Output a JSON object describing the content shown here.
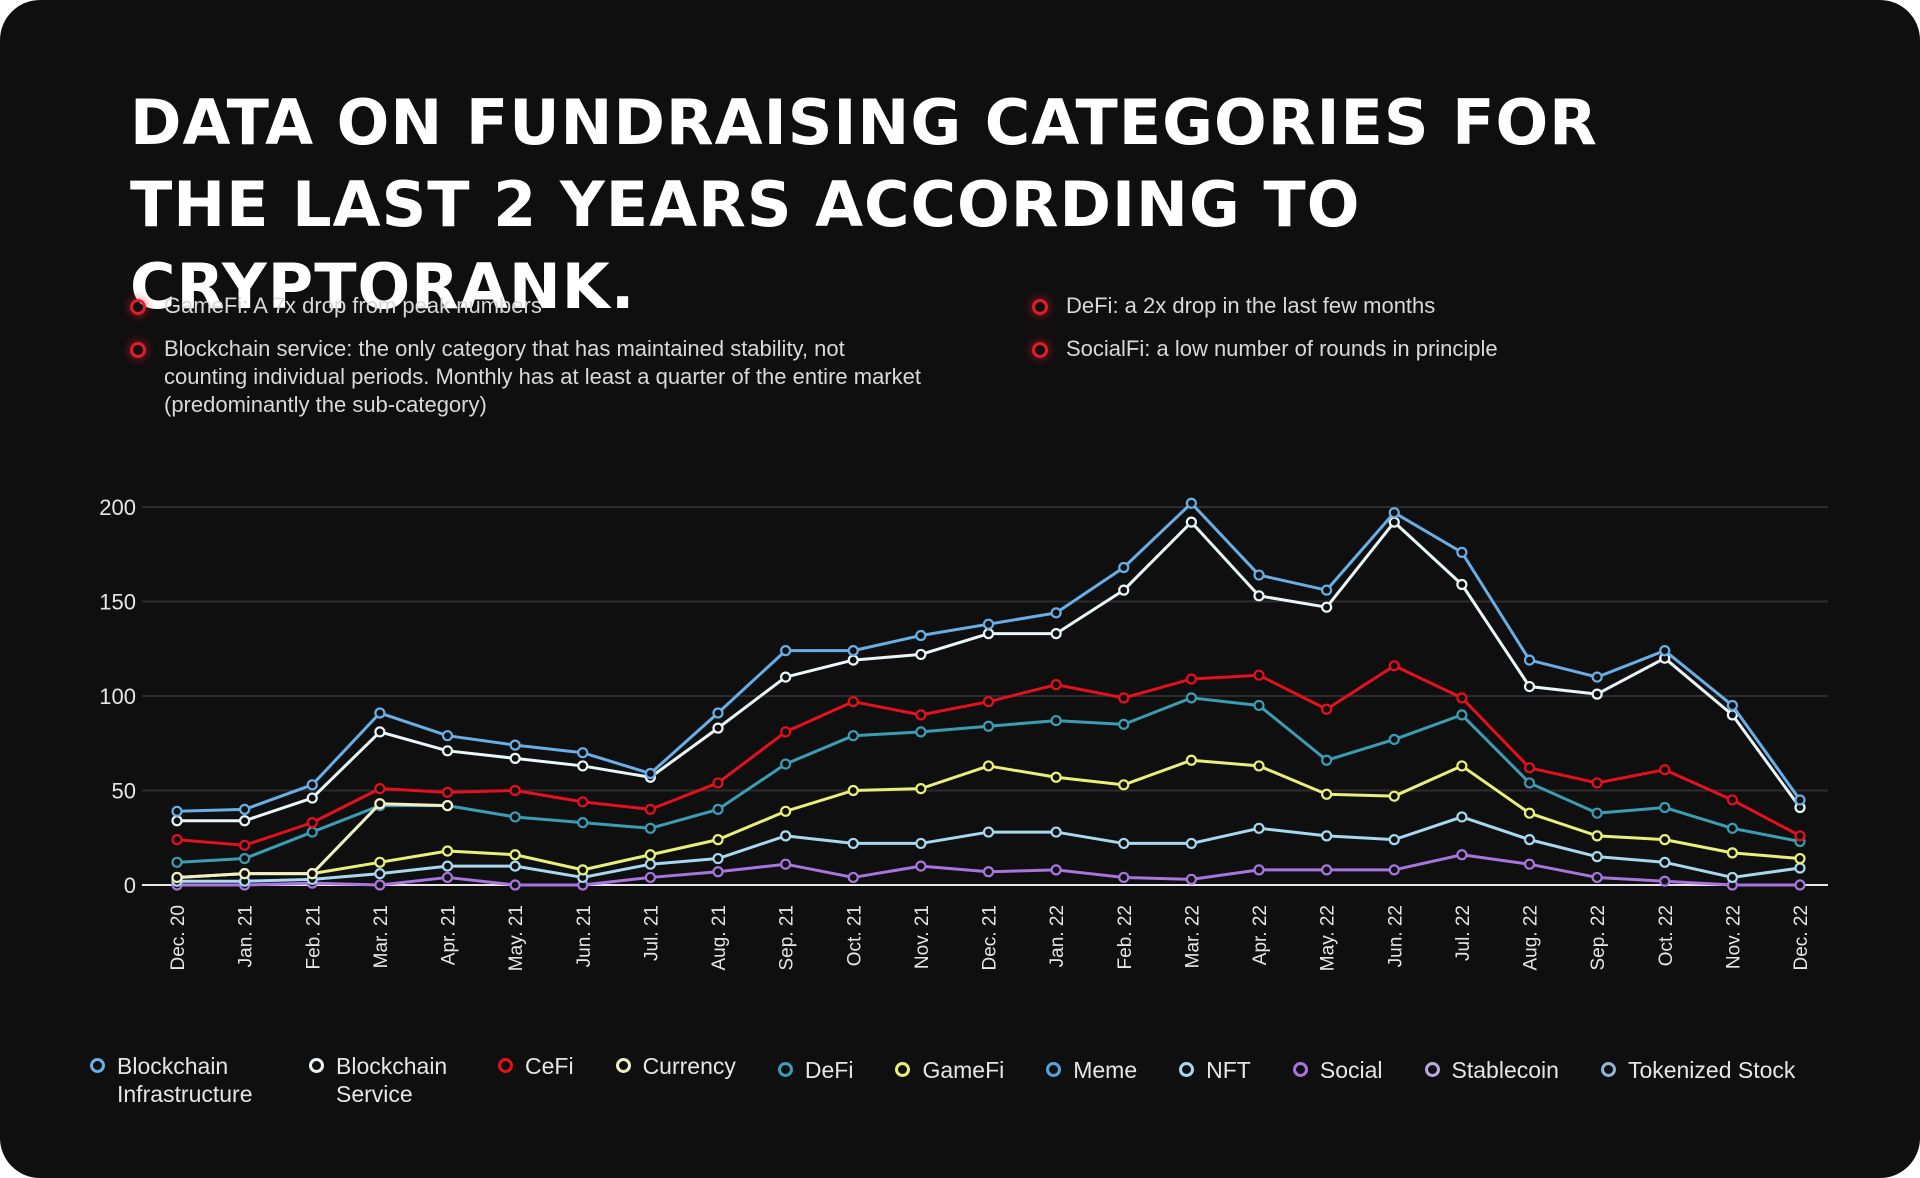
{
  "title": "DATA ON FUNDRAISING CATEGORIES FOR THE LAST 2 YEARS ACCORDING TO CRYPTORANK.",
  "notes_left": [
    "GameFi: A 7x drop from peak numbers",
    "Blockchain service: the only category that has maintained stability, not counting individual periods. Monthly has at least a quarter of the entire market (predominantly the sub-category)"
  ],
  "notes_right": [
    "DeFi: a 2x drop in the last few months",
    "SocialFi: a low number of rounds in principle"
  ],
  "chart_data": {
    "type": "line",
    "title": "",
    "xlabel": "",
    "ylabel": "",
    "ylim": [
      0,
      200
    ],
    "yticks": [
      0,
      50,
      100,
      150,
      200
    ],
    "grid": true,
    "legend": "bottom",
    "categories": [
      "Dec. 20",
      "Jan. 21",
      "Feb. 21",
      "Mar. 21",
      "Apr. 21",
      "May. 21",
      "Jun. 21",
      "Jul. 21",
      "Aug. 21",
      "Sep. 21",
      "Oct. 21",
      "Nov. 21",
      "Dec. 21",
      "Jan. 22",
      "Feb. 22",
      "Mar. 22",
      "Apr. 22",
      "May. 22",
      "Jun. 22",
      "Jul. 22",
      "Aug. 22",
      "Sep. 22",
      "Oct. 22",
      "Nov. 22",
      "Dec. 22"
    ],
    "series": [
      {
        "name": "Blockchain Infrastructure",
        "color": "#6aaee6",
        "values": [
          39,
          40,
          53,
          91,
          79,
          74,
          70,
          59,
          91,
          124,
          124,
          132,
          138,
          144,
          168,
          202,
          164,
          156,
          197,
          176,
          119,
          110,
          124,
          95,
          45
        ]
      },
      {
        "name": "Blockchain Service",
        "color": "#eaf6f8",
        "values": [
          34,
          34,
          46,
          81,
          71,
          67,
          63,
          57,
          83,
          110,
          119,
          122,
          133,
          133,
          156,
          192,
          153,
          147,
          192,
          159,
          105,
          101,
          120,
          90,
          41
        ]
      },
      {
        "name": "CeFi",
        "color": "#e4101e",
        "values": [
          24,
          21,
          33,
          51,
          49,
          50,
          44,
          40,
          54,
          81,
          97,
          90,
          97,
          106,
          99,
          109,
          111,
          93,
          116,
          99,
          62,
          54,
          61,
          45,
          26
        ]
      },
      {
        "name": "Currency",
        "color": "#f2efc4",
        "values": [
          4,
          6,
          6,
          43,
          42,
          null,
          null,
          null,
          null,
          null,
          null,
          null,
          null,
          null,
          null,
          null,
          null,
          null,
          null,
          null,
          null,
          null,
          null,
          null,
          null
        ]
      },
      {
        "name": "DeFi",
        "color": "#3a9db4",
        "values": [
          12,
          14,
          28,
          42,
          42,
          36,
          33,
          30,
          40,
          64,
          79,
          81,
          84,
          87,
          85,
          99,
          95,
          66,
          77,
          90,
          54,
          38,
          41,
          30,
          23
        ]
      },
      {
        "name": "GameFi",
        "color": "#e8f07a",
        "values": [
          4,
          6,
          6,
          12,
          18,
          16,
          8,
          16,
          24,
          39,
          50,
          51,
          63,
          57,
          53,
          66,
          63,
          48,
          47,
          63,
          38,
          26,
          24,
          17,
          14
        ]
      },
      {
        "name": "Meme",
        "color": "#5aa0e0",
        "values": [
          null,
          null,
          null,
          null,
          null,
          null,
          null,
          null,
          null,
          null,
          null,
          null,
          null,
          null,
          null,
          null,
          null,
          null,
          null,
          null,
          null,
          null,
          null,
          null,
          null
        ]
      },
      {
        "name": "NFT",
        "color": "#a8d8f0",
        "values": [
          2,
          2,
          3,
          6,
          10,
          10,
          4,
          11,
          14,
          26,
          22,
          22,
          28,
          28,
          22,
          22,
          30,
          26,
          24,
          36,
          24,
          15,
          12,
          4,
          9
        ]
      },
      {
        "name": "Social",
        "color": "#a874de",
        "values": [
          0,
          0,
          1,
          0,
          4,
          0,
          0,
          4,
          7,
          11,
          4,
          10,
          7,
          8,
          4,
          3,
          8,
          8,
          8,
          16,
          11,
          4,
          2,
          0,
          0
        ]
      },
      {
        "name": "Stablecoin",
        "color": "#b8a8e0",
        "values": [
          null,
          null,
          null,
          null,
          null,
          null,
          null,
          null,
          null,
          null,
          null,
          null,
          null,
          null,
          null,
          null,
          null,
          null,
          null,
          null,
          null,
          null,
          null,
          null,
          null
        ]
      },
      {
        "name": "Tokenized Stock",
        "color": "#8fb4d4",
        "values": [
          null,
          null,
          null,
          null,
          null,
          null,
          null,
          null,
          null,
          null,
          null,
          null,
          null,
          null,
          null,
          null,
          null,
          null,
          null,
          null,
          null,
          null,
          null,
          null,
          null
        ]
      }
    ]
  }
}
